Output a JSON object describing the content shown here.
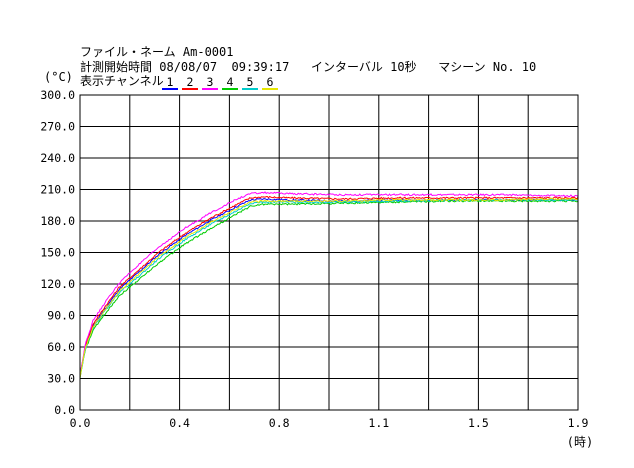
{
  "header": {
    "file_label": "ファイル・ネーム",
    "file_value": "Am-0001",
    "start_label": "計測開始時間",
    "start_date": "08/08/07",
    "start_time": "09:39:17",
    "interval_label": "インターバル",
    "interval_value": "10秒",
    "machine_label": "マシーン",
    "machine_value": "No. 10",
    "channel_label": "表示チャンネル"
  },
  "chart_data": {
    "type": "line",
    "ylabel": "(°C)",
    "xlabel": "(時)",
    "xlim": [
      0.0,
      1.9
    ],
    "ylim": [
      0.0,
      300.0
    ],
    "x_ticks": [
      "0.0",
      "0.4",
      "0.8",
      "1.1",
      "1.5",
      "1.9"
    ],
    "y_ticks": [
      "0.0",
      "30.0",
      "60.0",
      "90.0",
      "120.0",
      "150.0",
      "180.0",
      "210.0",
      "240.0",
      "270.0",
      "300.0"
    ],
    "grid": true,
    "series": [
      {
        "name": "1",
        "color": "#0000ff",
        "x": [
          0.0,
          0.02,
          0.05,
          0.1,
          0.15,
          0.2,
          0.3,
          0.4,
          0.5,
          0.6,
          0.65,
          0.7,
          0.8,
          1.0,
          1.2,
          1.4,
          1.6,
          1.8,
          1.9
        ],
        "y": [
          32,
          60,
          80,
          98,
          115,
          126,
          148,
          166,
          181,
          194,
          200,
          201,
          200,
          199,
          200,
          200,
          200,
          200,
          200
        ]
      },
      {
        "name": "2",
        "color": "#ff0000",
        "x": [
          0.0,
          0.02,
          0.05,
          0.1,
          0.15,
          0.2,
          0.3,
          0.4,
          0.5,
          0.6,
          0.65,
          0.7,
          0.8,
          1.0,
          1.2,
          1.4,
          1.6,
          1.8,
          1.9
        ],
        "y": [
          32,
          61,
          82,
          100,
          117,
          128,
          150,
          168,
          183,
          196,
          202,
          203,
          202,
          201,
          202,
          202,
          202,
          202,
          202
        ]
      },
      {
        "name": "3",
        "color": "#ff00ff",
        "x": [
          0.0,
          0.02,
          0.05,
          0.1,
          0.15,
          0.2,
          0.3,
          0.4,
          0.5,
          0.6,
          0.65,
          0.7,
          0.8,
          1.0,
          1.2,
          1.4,
          1.6,
          1.8,
          1.9
        ],
        "y": [
          33,
          63,
          85,
          104,
          121,
          133,
          155,
          173,
          188,
          201,
          206,
          207,
          206,
          205,
          205,
          205,
          205,
          204,
          204
        ]
      },
      {
        "name": "4",
        "color": "#00cc00",
        "x": [
          0.0,
          0.02,
          0.05,
          0.1,
          0.15,
          0.2,
          0.3,
          0.4,
          0.5,
          0.6,
          0.65,
          0.7,
          0.8,
          1.0,
          1.2,
          1.4,
          1.6,
          1.8,
          1.9
        ],
        "y": [
          31,
          57,
          76,
          93,
          109,
          119,
          140,
          158,
          173,
          187,
          194,
          196,
          196,
          197,
          198,
          199,
          199,
          199,
          199
        ]
      },
      {
        "name": "5",
        "color": "#00cccc",
        "x": [
          0.0,
          0.02,
          0.05,
          0.1,
          0.15,
          0.2,
          0.3,
          0.4,
          0.5,
          0.6,
          0.65,
          0.7,
          0.8,
          1.0,
          1.2,
          1.4,
          1.6,
          1.8,
          1.9
        ],
        "y": [
          31,
          58,
          78,
          96,
          112,
          122,
          144,
          162,
          177,
          190,
          197,
          198,
          198,
          198,
          199,
          200,
          200,
          200,
          200
        ]
      },
      {
        "name": "6",
        "color": "#e6e600",
        "x": [
          0.0,
          0.02,
          0.05,
          0.1,
          0.15,
          0.2,
          0.3,
          0.4,
          0.5,
          0.6,
          0.65,
          0.7,
          0.8,
          1.0,
          1.2,
          1.4,
          1.6,
          1.8,
          1.9
        ],
        "y": [
          31,
          59,
          79,
          97,
          113,
          124,
          146,
          164,
          179,
          192,
          198,
          199,
          199,
          199,
          200,
          200,
          200,
          201,
          201
        ]
      }
    ]
  }
}
